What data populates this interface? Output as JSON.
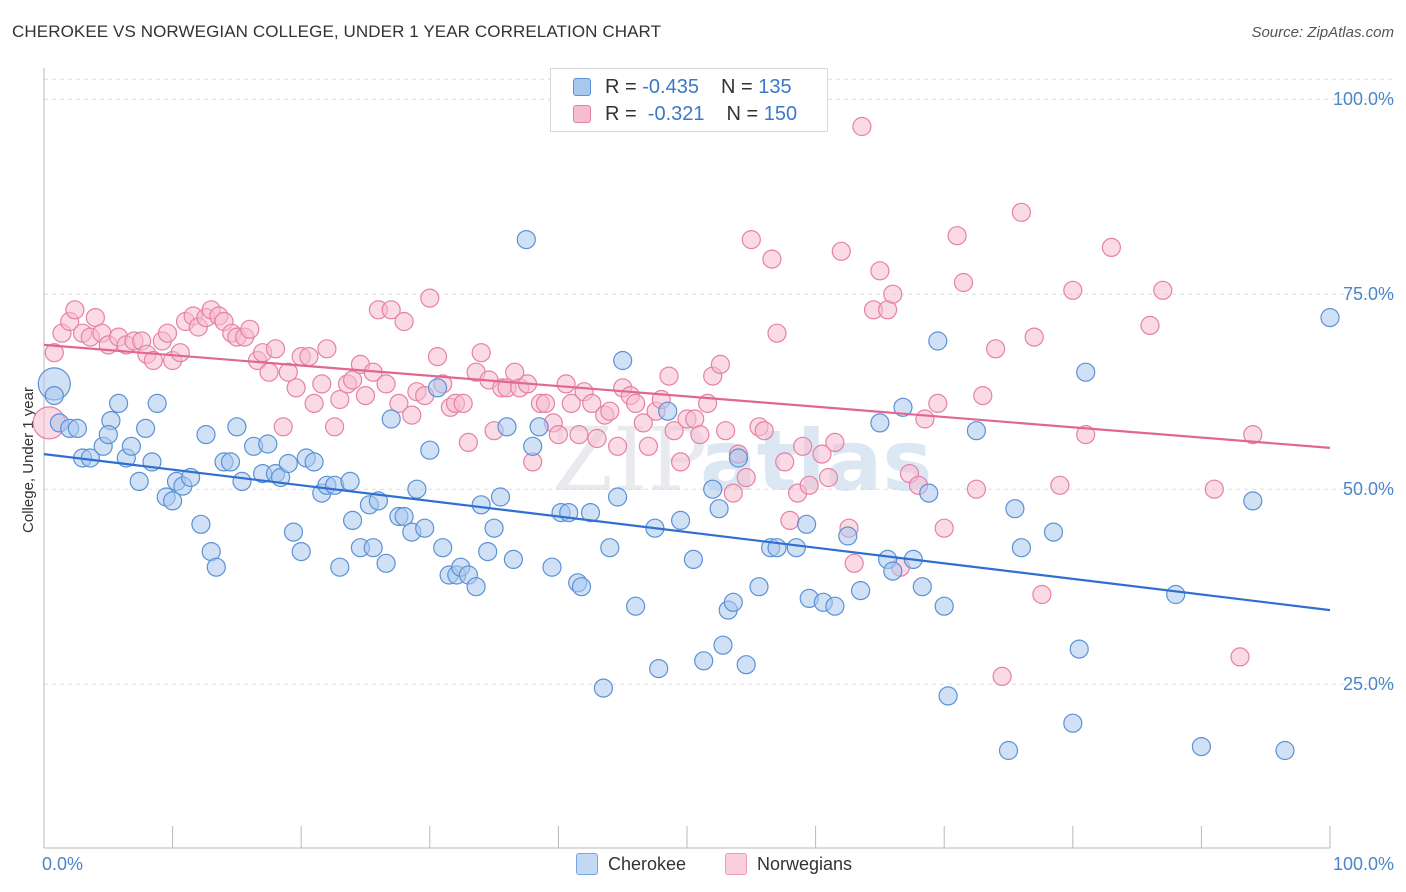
{
  "header": {
    "title": "CHEROKEE VS NORWEGIAN COLLEGE, UNDER 1 YEAR CORRELATION CHART",
    "source": "Source: ZipAtlas.com"
  },
  "legend": {
    "rows": [
      {
        "r_label": "R = ",
        "r_value": "-0.435",
        "n_label": "N = ",
        "n_value": "135"
      },
      {
        "r_label": "R = ",
        "r_value": " -0.321",
        "n_label": "N = ",
        "n_value": "150"
      }
    ]
  },
  "colors": {
    "cherokee_fill": "#a9c8ee",
    "cherokee_stroke": "#5b91d6",
    "cherokee_line": "#2e6fd0",
    "norwegians_fill": "#f6bcd0",
    "norwegians_stroke": "#e681a6",
    "norwegians_line": "#e06890",
    "tick_text": "#4a86c8"
  },
  "watermark": {
    "part1": "ZIP",
    "part2": "atlas"
  },
  "chart_data": {
    "type": "scatter",
    "title": "CHEROKEE VS NORWEGIAN COLLEGE, UNDER 1 YEAR CORRELATION CHART",
    "xlabel": "",
    "ylabel": "College, Under 1 year",
    "xlim": [
      0,
      100
    ],
    "ylim": [
      4,
      104
    ],
    "x_tick_labels": [
      "0.0%",
      "100.0%"
    ],
    "y_ticks": [
      25,
      50,
      75,
      100
    ],
    "y_tick_labels": [
      "25.0%",
      "50.0%",
      "75.0%",
      "100.0%"
    ],
    "grid": true,
    "legend_position": "top-center",
    "series": [
      {
        "name": "Cherokee",
        "r": -0.435,
        "n": 135,
        "trend": {
          "x": [
            0,
            100
          ],
          "y": [
            54.5,
            34.5
          ]
        },
        "points": [
          [
            0.8,
            63.5
          ],
          [
            0.8,
            62
          ],
          [
            1.2,
            58.5
          ],
          [
            2,
            57.8
          ],
          [
            2.6,
            57.8
          ],
          [
            3,
            54
          ],
          [
            3.6,
            54
          ],
          [
            4.6,
            55.5
          ],
          [
            5.2,
            58.8
          ],
          [
            5,
            57
          ],
          [
            5.8,
            61
          ],
          [
            6.4,
            54
          ],
          [
            6.8,
            55.5
          ],
          [
            7.4,
            51
          ],
          [
            7.9,
            57.8
          ],
          [
            8.4,
            53.5
          ],
          [
            8.8,
            61
          ],
          [
            9.5,
            49
          ],
          [
            10,
            48.5
          ],
          [
            10.3,
            51
          ],
          [
            10.8,
            50.4
          ],
          [
            11.4,
            51.5
          ],
          [
            12.2,
            45.5
          ],
          [
            12.6,
            57
          ],
          [
            13,
            42
          ],
          [
            13.4,
            40
          ],
          [
            14,
            53.5
          ],
          [
            14.5,
            53.5
          ],
          [
            15,
            58
          ],
          [
            15.4,
            51
          ],
          [
            16.3,
            55.5
          ],
          [
            17,
            52
          ],
          [
            17.4,
            55.8
          ],
          [
            18,
            52
          ],
          [
            18.4,
            51.5
          ],
          [
            19,
            53.3
          ],
          [
            19.4,
            44.5
          ],
          [
            20,
            42
          ],
          [
            20.4,
            54
          ],
          [
            21,
            53.5
          ],
          [
            21.6,
            49.5
          ],
          [
            22,
            50.5
          ],
          [
            22.6,
            50.5
          ],
          [
            23,
            40
          ],
          [
            23.8,
            51
          ],
          [
            24,
            46
          ],
          [
            24.6,
            42.5
          ],
          [
            25.3,
            48
          ],
          [
            25.6,
            42.5
          ],
          [
            26,
            48.5
          ],
          [
            26.6,
            40.5
          ],
          [
            27,
            59
          ],
          [
            27.6,
            46.5
          ],
          [
            28,
            46.5
          ],
          [
            28.6,
            44.5
          ],
          [
            29,
            50
          ],
          [
            29.6,
            45
          ],
          [
            30,
            55
          ],
          [
            30.6,
            63
          ],
          [
            31,
            42.5
          ],
          [
            31.5,
            39
          ],
          [
            32.1,
            39
          ],
          [
            32.4,
            40
          ],
          [
            33,
            39
          ],
          [
            33.6,
            37.5
          ],
          [
            34,
            48
          ],
          [
            34.5,
            42
          ],
          [
            35,
            45
          ],
          [
            35.5,
            49
          ],
          [
            36,
            58
          ],
          [
            36.5,
            41
          ],
          [
            37.5,
            82
          ],
          [
            38,
            55.5
          ],
          [
            38.5,
            58
          ],
          [
            39.5,
            40
          ],
          [
            40.2,
            47
          ],
          [
            40.8,
            47
          ],
          [
            41.5,
            38
          ],
          [
            41.8,
            37.5
          ],
          [
            42.5,
            47
          ],
          [
            43.5,
            24.5
          ],
          [
            44,
            42.5
          ],
          [
            44.6,
            49
          ],
          [
            45,
            66.5
          ],
          [
            46,
            35
          ],
          [
            47.5,
            45
          ],
          [
            47.8,
            27
          ],
          [
            48.5,
            60
          ],
          [
            49.5,
            46
          ],
          [
            50.5,
            41
          ],
          [
            51.3,
            28
          ],
          [
            52,
            50
          ],
          [
            52.5,
            47.5
          ],
          [
            52.8,
            30
          ],
          [
            53.2,
            34.5
          ],
          [
            53.6,
            35.5
          ],
          [
            54,
            54
          ],
          [
            54.6,
            27.5
          ],
          [
            55.6,
            37.5
          ],
          [
            56.5,
            42.5
          ],
          [
            57,
            42.5
          ],
          [
            58.5,
            42.5
          ],
          [
            59.3,
            45.5
          ],
          [
            59.5,
            36
          ],
          [
            60.6,
            35.5
          ],
          [
            61.5,
            35
          ],
          [
            62.5,
            44
          ],
          [
            63.5,
            37
          ],
          [
            65,
            58.5
          ],
          [
            65.6,
            41
          ],
          [
            66,
            39.5
          ],
          [
            66.8,
            60.5
          ],
          [
            67.6,
            41
          ],
          [
            68.3,
            37.5
          ],
          [
            68.8,
            49.5
          ],
          [
            69.5,
            69
          ],
          [
            70,
            35
          ],
          [
            70.3,
            23.5
          ],
          [
            72.5,
            57.5
          ],
          [
            75,
            16.5
          ],
          [
            75.5,
            47.5
          ],
          [
            76,
            42.5
          ],
          [
            78.5,
            44.5
          ],
          [
            80,
            20
          ],
          [
            80.5,
            29.5
          ],
          [
            81,
            65
          ],
          [
            88,
            36.5
          ],
          [
            90,
            17
          ],
          [
            94,
            48.5
          ],
          [
            96.5,
            16.5
          ],
          [
            100,
            72
          ]
        ]
      },
      {
        "name": "Norwegians",
        "r": -0.321,
        "n": 150,
        "trend": {
          "x": [
            0,
            100
          ],
          "y": [
            68.5,
            55.3
          ]
        },
        "points": [
          [
            0.4,
            58.5
          ],
          [
            0.8,
            67.5
          ],
          [
            1.4,
            70
          ],
          [
            2,
            71.5
          ],
          [
            2.4,
            73
          ],
          [
            3,
            70
          ],
          [
            3.6,
            69.5
          ],
          [
            4,
            72
          ],
          [
            4.5,
            70
          ],
          [
            5,
            68.5
          ],
          [
            5.8,
            69.5
          ],
          [
            6.4,
            68.5
          ],
          [
            7,
            69
          ],
          [
            7.6,
            69
          ],
          [
            8,
            67.3
          ],
          [
            8.5,
            66.5
          ],
          [
            9.2,
            69
          ],
          [
            9.6,
            70
          ],
          [
            10,
            66.5
          ],
          [
            10.6,
            67.5
          ],
          [
            11,
            71.5
          ],
          [
            11.6,
            72.2
          ],
          [
            12,
            70.8
          ],
          [
            12.6,
            72
          ],
          [
            13,
            73
          ],
          [
            13.6,
            72.2
          ],
          [
            14,
            71.5
          ],
          [
            14.6,
            70
          ],
          [
            15,
            69.5
          ],
          [
            15.6,
            69.5
          ],
          [
            16,
            70.5
          ],
          [
            16.6,
            66.5
          ],
          [
            17,
            67.5
          ],
          [
            17.5,
            65
          ],
          [
            18,
            68
          ],
          [
            18.6,
            58
          ],
          [
            19,
            65
          ],
          [
            19.6,
            63
          ],
          [
            20,
            67
          ],
          [
            20.6,
            67
          ],
          [
            21,
            61
          ],
          [
            21.6,
            63.5
          ],
          [
            22,
            68
          ],
          [
            22.6,
            58
          ],
          [
            23,
            61.5
          ],
          [
            23.6,
            63.5
          ],
          [
            24,
            64
          ],
          [
            24.6,
            66
          ],
          [
            25,
            62
          ],
          [
            25.6,
            65
          ],
          [
            26,
            73
          ],
          [
            26.6,
            63.5
          ],
          [
            27,
            73
          ],
          [
            27.6,
            61
          ],
          [
            28,
            71.5
          ],
          [
            28.6,
            59.5
          ],
          [
            29,
            62.5
          ],
          [
            29.6,
            62
          ],
          [
            30,
            74.5
          ],
          [
            30.6,
            67
          ],
          [
            31,
            63.5
          ],
          [
            31.6,
            60.5
          ],
          [
            32,
            61
          ],
          [
            32.6,
            61
          ],
          [
            33,
            56
          ],
          [
            33.6,
            65
          ],
          [
            34,
            67.5
          ],
          [
            34.6,
            64
          ],
          [
            35,
            57.5
          ],
          [
            35.6,
            63
          ],
          [
            36,
            63
          ],
          [
            36.6,
            65
          ],
          [
            37,
            63
          ],
          [
            37.6,
            63.5
          ],
          [
            38,
            53.5
          ],
          [
            38.6,
            61
          ],
          [
            39,
            61
          ],
          [
            39.6,
            58.5
          ],
          [
            40,
            57
          ],
          [
            40.6,
            63.5
          ],
          [
            41,
            61
          ],
          [
            41.6,
            57
          ],
          [
            42,
            62.5
          ],
          [
            42.6,
            61
          ],
          [
            43,
            56.5
          ],
          [
            43.6,
            59.5
          ],
          [
            44,
            60
          ],
          [
            44.6,
            55.5
          ],
          [
            45,
            63
          ],
          [
            45.6,
            62
          ],
          [
            46,
            61
          ],
          [
            46.6,
            58.5
          ],
          [
            47,
            55.5
          ],
          [
            47.6,
            60
          ],
          [
            48,
            61.5
          ],
          [
            48.6,
            64.5
          ],
          [
            49,
            57.5
          ],
          [
            49.5,
            53.5
          ],
          [
            50,
            59
          ],
          [
            50.6,
            59
          ],
          [
            51,
            57
          ],
          [
            51.6,
            61
          ],
          [
            52,
            64.5
          ],
          [
            52.6,
            66
          ],
          [
            53,
            57.5
          ],
          [
            53.6,
            49.5
          ],
          [
            54,
            54.5
          ],
          [
            54.6,
            51.5
          ],
          [
            55,
            82
          ],
          [
            55.6,
            58
          ],
          [
            56,
            57.5
          ],
          [
            56.6,
            79.5
          ],
          [
            57,
            70
          ],
          [
            57.6,
            53.5
          ],
          [
            58,
            46
          ],
          [
            58.6,
            49.5
          ],
          [
            59,
            55.5
          ],
          [
            59.5,
            50.5
          ],
          [
            60.5,
            54.5
          ],
          [
            61,
            51.5
          ],
          [
            61.5,
            56
          ],
          [
            62,
            80.5
          ],
          [
            62.6,
            45
          ],
          [
            63,
            40.5
          ],
          [
            63.6,
            96.5
          ],
          [
            64.5,
            73
          ],
          [
            65,
            78
          ],
          [
            65.6,
            73
          ],
          [
            66,
            75
          ],
          [
            66.6,
            40
          ],
          [
            67.3,
            52
          ],
          [
            68,
            50.5
          ],
          [
            68.5,
            59
          ],
          [
            69.5,
            61
          ],
          [
            70,
            45
          ],
          [
            71,
            82.5
          ],
          [
            71.5,
            76.5
          ],
          [
            72.5,
            50
          ],
          [
            73,
            62
          ],
          [
            74,
            68
          ],
          [
            74.5,
            26
          ],
          [
            76,
            85.5
          ],
          [
            77,
            69.5
          ],
          [
            77.6,
            36.5
          ],
          [
            79,
            50.5
          ],
          [
            80,
            75.5
          ],
          [
            81,
            57
          ],
          [
            83,
            81
          ],
          [
            86,
            71
          ],
          [
            87,
            75.5
          ],
          [
            91,
            50
          ],
          [
            93,
            28.5
          ],
          [
            94,
            57
          ]
        ]
      }
    ]
  },
  "bottom_legend": {
    "items": [
      {
        "label": "Cherokee"
      },
      {
        "label": "Norwegians"
      }
    ]
  }
}
